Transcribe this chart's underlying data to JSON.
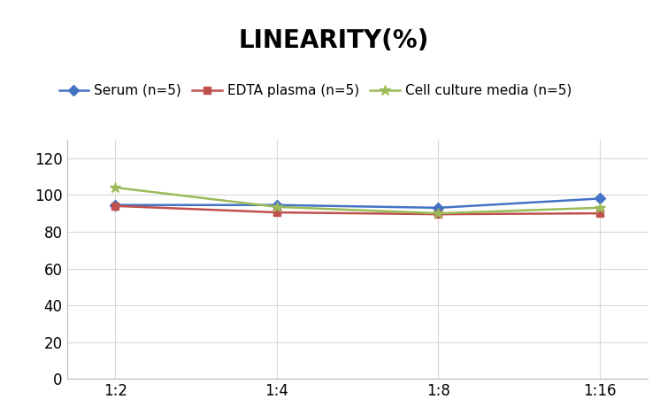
{
  "title": "LINEARITY(%)",
  "title_fontsize": 20,
  "title_fontweight": "bold",
  "x_labels": [
    "1:2",
    "1:4",
    "1:8",
    "1:16"
  ],
  "x_values": [
    0,
    1,
    2,
    3
  ],
  "series": [
    {
      "label": "Serum (n=5)",
      "values": [
        94.5,
        94.5,
        93.0,
        98.0
      ],
      "color": "#4472C4",
      "marker": "D",
      "markersize": 6,
      "linewidth": 1.8
    },
    {
      "label": "EDTA plasma (n=5)",
      "values": [
        94.0,
        90.5,
        89.5,
        90.0
      ],
      "color": "#C0504D",
      "marker": "s",
      "markersize": 6,
      "linewidth": 1.8
    },
    {
      "label": "Cell culture media (n=5)",
      "values": [
        104.0,
        93.5,
        90.0,
        93.0
      ],
      "color": "#9BBB59",
      "marker": "*",
      "markersize": 9,
      "linewidth": 1.8
    }
  ],
  "ylim": [
    0,
    130
  ],
  "yticks": [
    0,
    20,
    40,
    60,
    80,
    100,
    120
  ],
  "background_color": "#FFFFFF",
  "grid_color": "#D8D8D8",
  "legend_fontsize": 11,
  "tick_fontsize": 12
}
